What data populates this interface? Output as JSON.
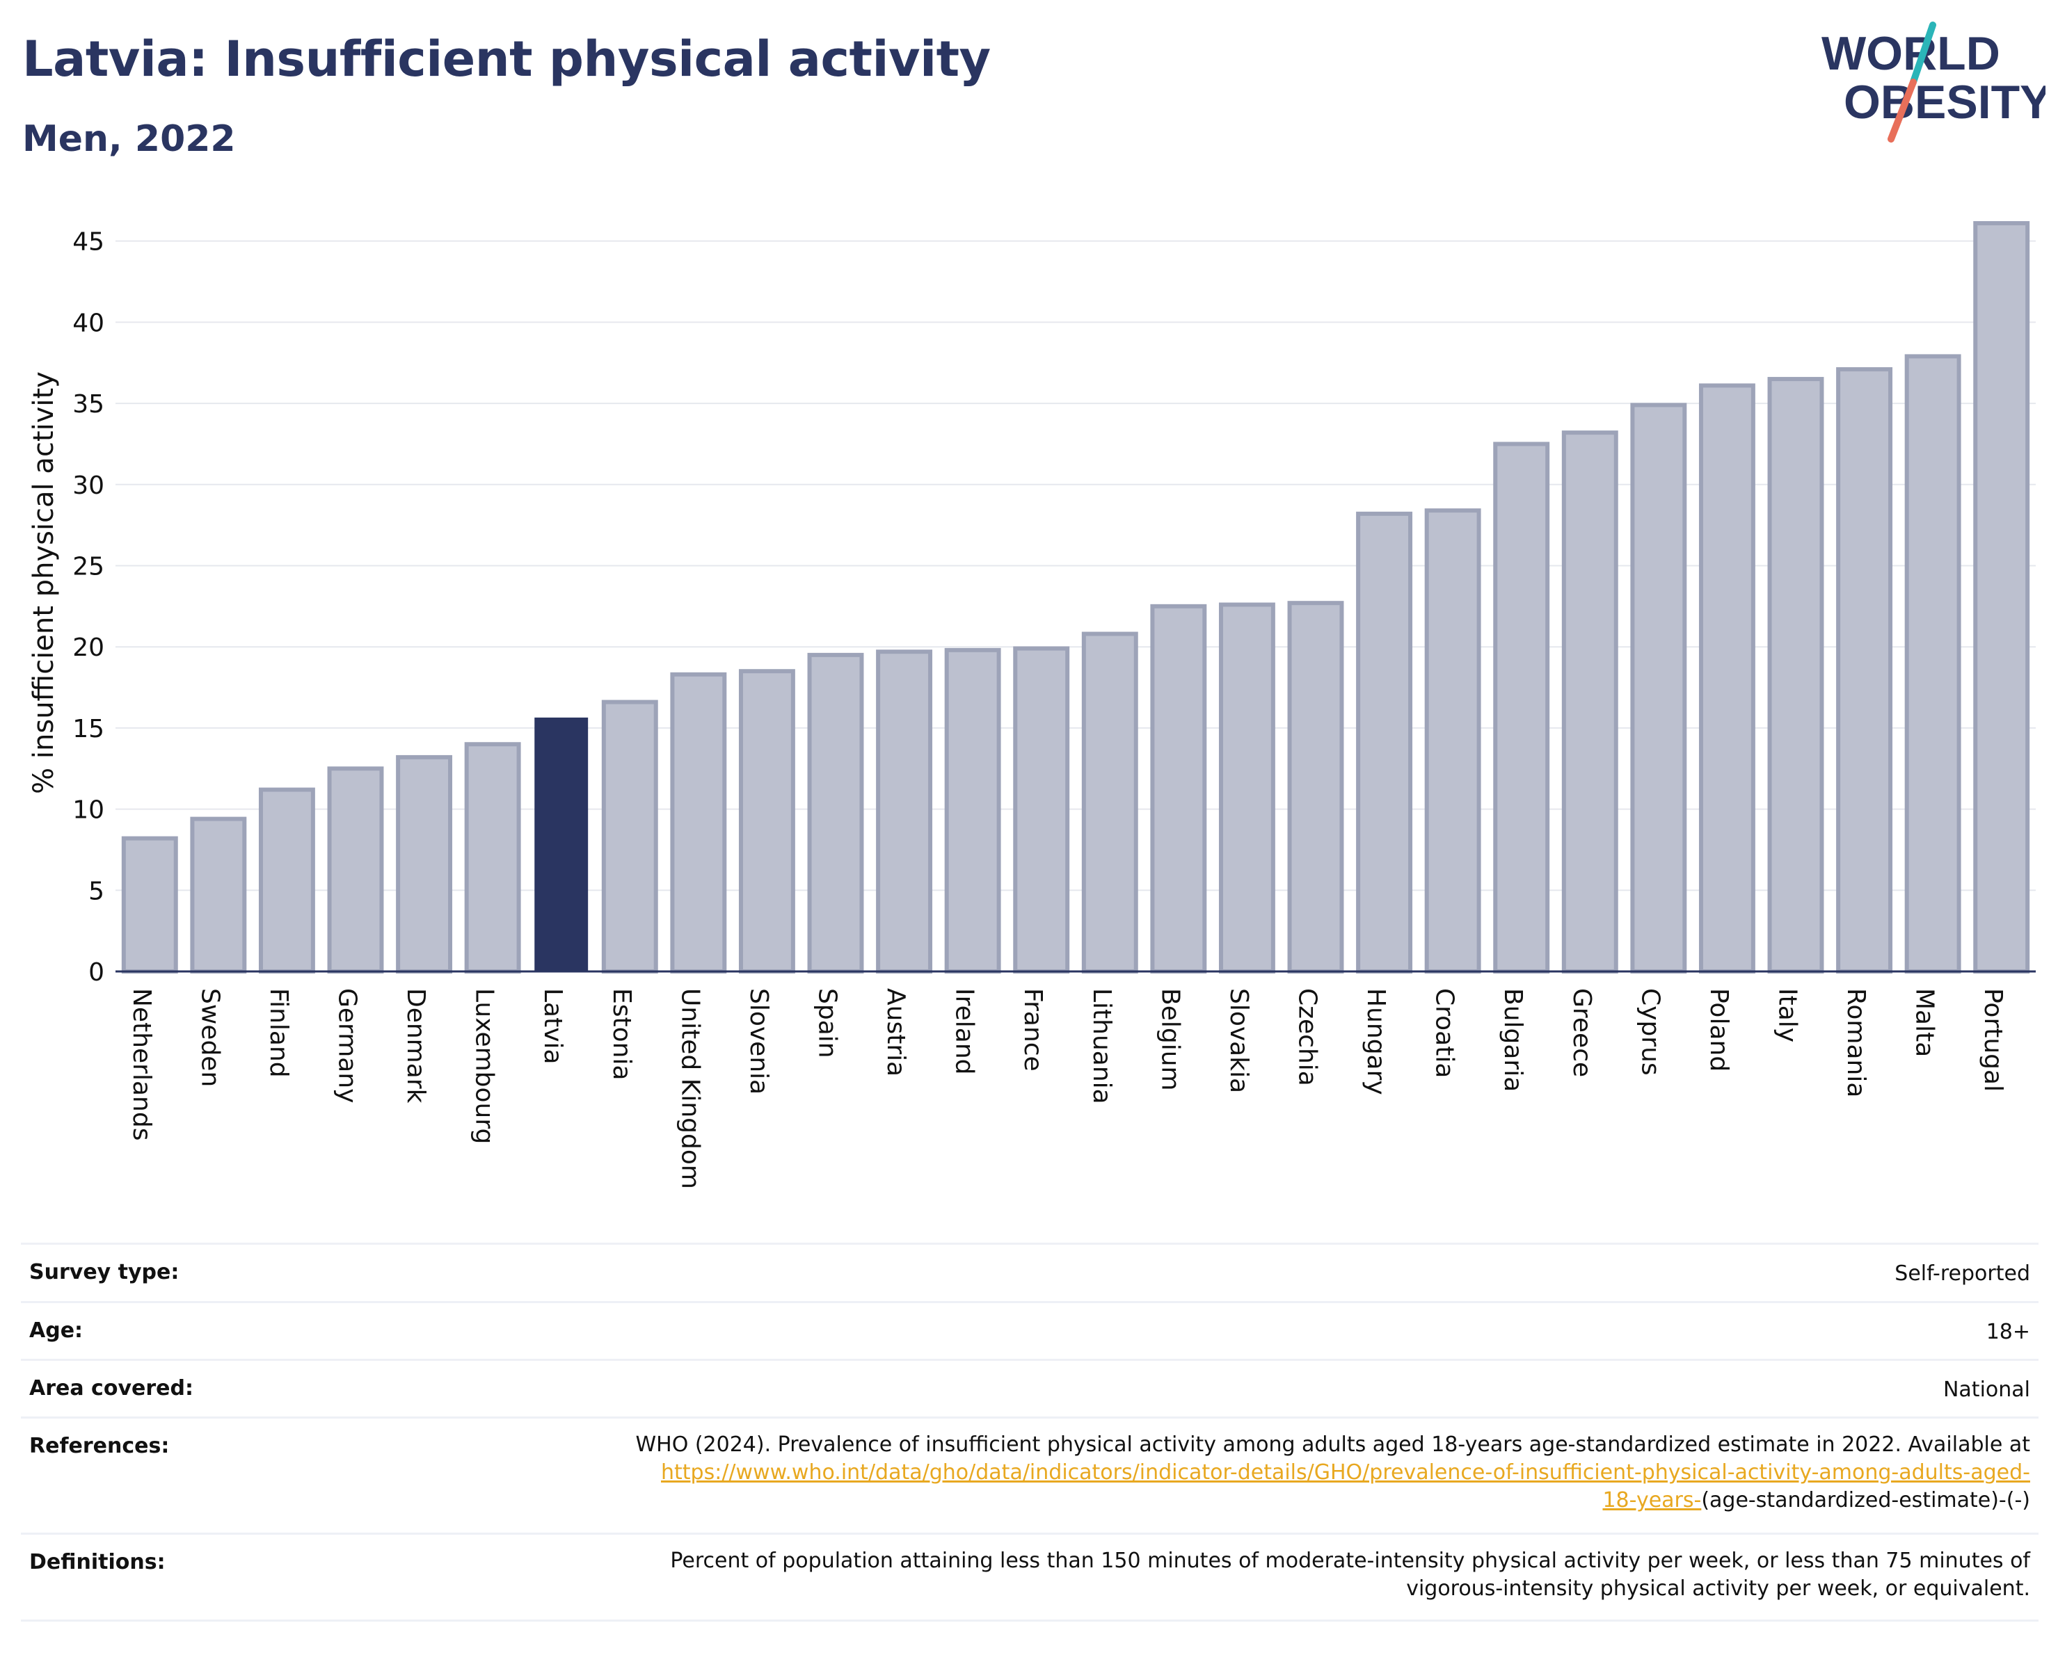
{
  "header": {
    "title": "Latvia: Insufficient physical activity",
    "subtitle": "Men, 2022"
  },
  "logo": {
    "line1": "WORLD",
    "line2": "OBESITY",
    "colors": {
      "text": "#2a3561",
      "slash_teal": "#2bb5b8",
      "slash_coral": "#e86f5a"
    }
  },
  "chart_data": {
    "type": "bar",
    "ylabel": "% insufficient physical activity",
    "ylim": [
      0,
      47
    ],
    "yticks": [
      0,
      5,
      10,
      15,
      20,
      25,
      30,
      35,
      40,
      45
    ],
    "grid": true,
    "highlight": "Latvia",
    "categories": [
      "Netherlands",
      "Sweden",
      "Finland",
      "Germany",
      "Denmark",
      "Luxembourg",
      "Latvia",
      "Estonia",
      "United Kingdom",
      "Slovenia",
      "Spain",
      "Austria",
      "Ireland",
      "France",
      "Lithuania",
      "Belgium",
      "Slovakia",
      "Czechia",
      "Hungary",
      "Croatia",
      "Bulgaria",
      "Greece",
      "Cyprus",
      "Poland",
      "Italy",
      "Romania",
      "Malta",
      "Portugal"
    ],
    "values": [
      8.2,
      9.4,
      11.2,
      12.5,
      13.2,
      14.0,
      15.6,
      16.6,
      18.3,
      18.5,
      19.5,
      19.7,
      19.8,
      19.9,
      20.8,
      22.5,
      22.6,
      22.7,
      28.2,
      28.4,
      32.5,
      33.2,
      34.9,
      36.1,
      36.5,
      37.1,
      37.9,
      46.1
    ],
    "colors": {
      "bar": "#bcc0cf",
      "bar_border": "#9da3b8",
      "highlight": "#2a3561",
      "grid": "#e6e8ee",
      "axis": "#2a3561"
    }
  },
  "info": {
    "survey_type_label": "Survey type:",
    "survey_type_value": "Self-reported",
    "age_label": "Age:",
    "age_value": "18+",
    "area_label": "Area covered:",
    "area_value": "National",
    "references_label": "References:",
    "references_text": "WHO (2024). Prevalence of insufficient physical activity among adults aged 18-years age-standardized estimate in 2022. Available at",
    "references_link_1": "https://www.who.int/data/gho/data/indicators/indicator-details/GHO/prevalence-of-insufficient-physical-activity-among-adults-aged-",
    "references_link_2": "18-years-",
    "references_suffix": "(age-standardized-estimate)-(-)",
    "definitions_label": "Definitions:",
    "definitions_line_1": "Percent of population attaining less than 150 minutes of moderate-intensity physical activity per week, or less than 75 minutes of",
    "definitions_line_2": "vigorous-intensity physical activity per week, or equivalent."
  }
}
